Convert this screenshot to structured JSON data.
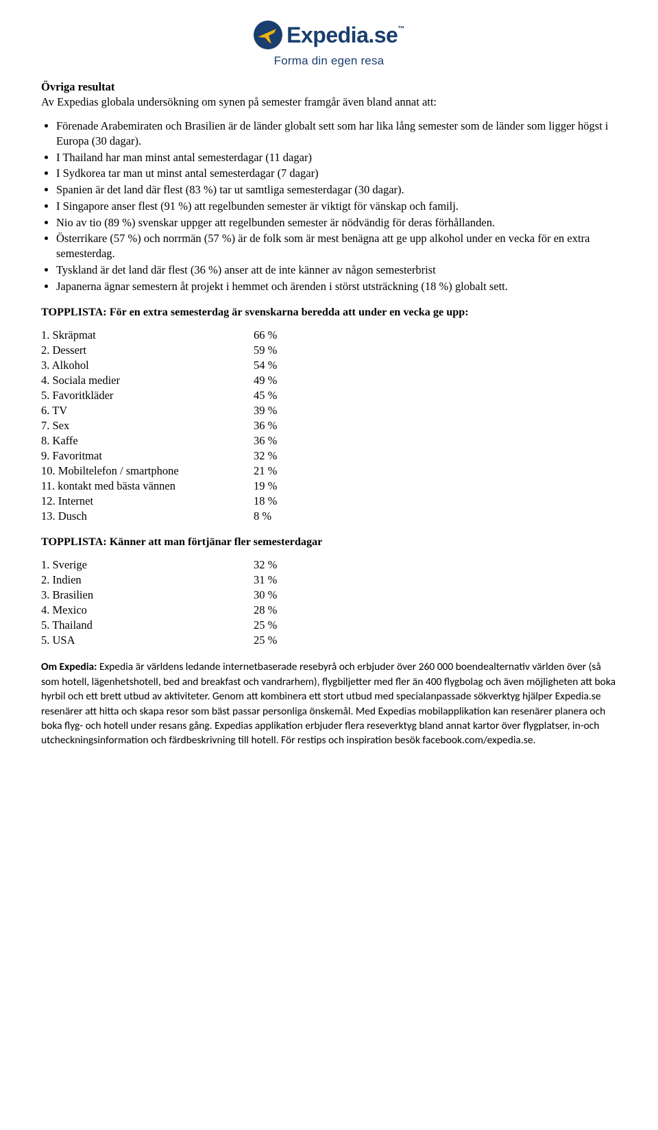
{
  "brand": {
    "name": "Expedia.se",
    "tagline": "Forma din egen resa",
    "color": "#1a3e6e",
    "accent": "#f0b20b"
  },
  "results": {
    "heading": "Övriga resultat",
    "intro": "Av Expedias globala undersökning om synen på semester framgår även bland annat att:",
    "bullets": [
      "Förenade Arabemiraten och Brasilien är de länder globalt sett som har lika lång semester som de länder som ligger högst i Europa (30 dagar).",
      "I Thailand har man minst antal semesterdagar (11 dagar)",
      "I Sydkorea tar man ut minst antal semesterdagar (7 dagar)",
      "Spanien är det land där flest (83 %) tar ut samtliga semesterdagar (30 dagar).",
      "I Singapore anser flest (91 %) att regelbunden semester är viktigt för vänskap och familj.",
      "Nio av tio (89 %) svenskar uppger att regelbunden semester är nödvändig för deras förhållanden.",
      "Österrikare (57 %) och norrmän (57 %) är de folk som är mest benägna att ge upp alkohol under en vecka för en extra semesterdag.",
      "Tyskland är det land där flest (36 %) anser att de inte känner av någon semesterbrist",
      "Japanerna ägnar semestern åt projekt i hemmet och ärenden i störst utsträckning (18 %) globalt sett."
    ]
  },
  "toplist1": {
    "heading": "TOPPLISTA: För en extra semesterdag är svenskarna beredda att under en vecka ge upp:",
    "rows": [
      {
        "n": "1.",
        "label": "Skräpmat",
        "val": "66 %"
      },
      {
        "n": "2.",
        "label": "Dessert",
        "val": "59 %"
      },
      {
        "n": "3.",
        "label": "Alkohol",
        "val": "54 %"
      },
      {
        "n": "4.",
        "label": "Sociala medier",
        "val": "49 %"
      },
      {
        "n": "5.",
        "label": "Favoritkläder",
        "val": "45 %"
      },
      {
        "n": "6.",
        "label": "TV",
        "val": "39 %"
      },
      {
        "n": "7.",
        "label": "Sex",
        "val": "36 %"
      },
      {
        "n": "8.",
        "label": "Kaffe",
        "val": "36 %"
      },
      {
        "n": "9.",
        "label": "Favoritmat",
        "val": "32 %"
      },
      {
        "n": "10.",
        "label": "Mobiltelefon / smartphone",
        "val": "21 %"
      },
      {
        "n": "11.",
        "label": "kontakt med bästa vännen",
        "val": "19 %"
      },
      {
        "n": "12.",
        "label": "Internet",
        "val": "18 %"
      },
      {
        "n": "13.",
        "label": "Dusch",
        "val": "8 %"
      }
    ]
  },
  "toplist2": {
    "heading": "TOPPLISTA: Känner att man förtjänar fler semesterdagar",
    "rows": [
      {
        "n": "1.",
        "label": "Sverige",
        "val": "32 %"
      },
      {
        "n": "2.",
        "label": "Indien",
        "val": "31 %"
      },
      {
        "n": "3.",
        "label": "Brasilien",
        "val": "30 %"
      },
      {
        "n": "4.",
        "label": "Mexico",
        "val": "28 %"
      },
      {
        "n": "5.",
        "label": "Thailand",
        "val": "25 %"
      },
      {
        "n": "5.",
        "label": "USA",
        "val": "25 %"
      }
    ]
  },
  "about": {
    "title": "Om Expedia: ",
    "body": "Expedia är världens ledande internetbaserade resebyrå och erbjuder över 260 000 boendealternativ världen över (så som hotell, lägenhetshotell, bed and breakfast och vandrarhem), flygbiljetter med fler än 400 flygbolag och även möjligheten att boka hyrbil och ett brett utbud av aktiviteter. Genom att kombinera ett stort utbud med specialanpassade sökverktyg hjälper Expedia.se resenärer att hitta och skapa resor som bäst passar personliga önskemål. Med Expedias mobilapplikation kan resenärer planera och boka flyg- och hotell under resans gång. Expedias applikation erbjuder flera reseverktyg bland annat kartor över flygplatser, in-och utcheckningsinformation och färdbeskrivning till hotell. För restips och inspiration besök facebook.com/expedia.se."
  }
}
